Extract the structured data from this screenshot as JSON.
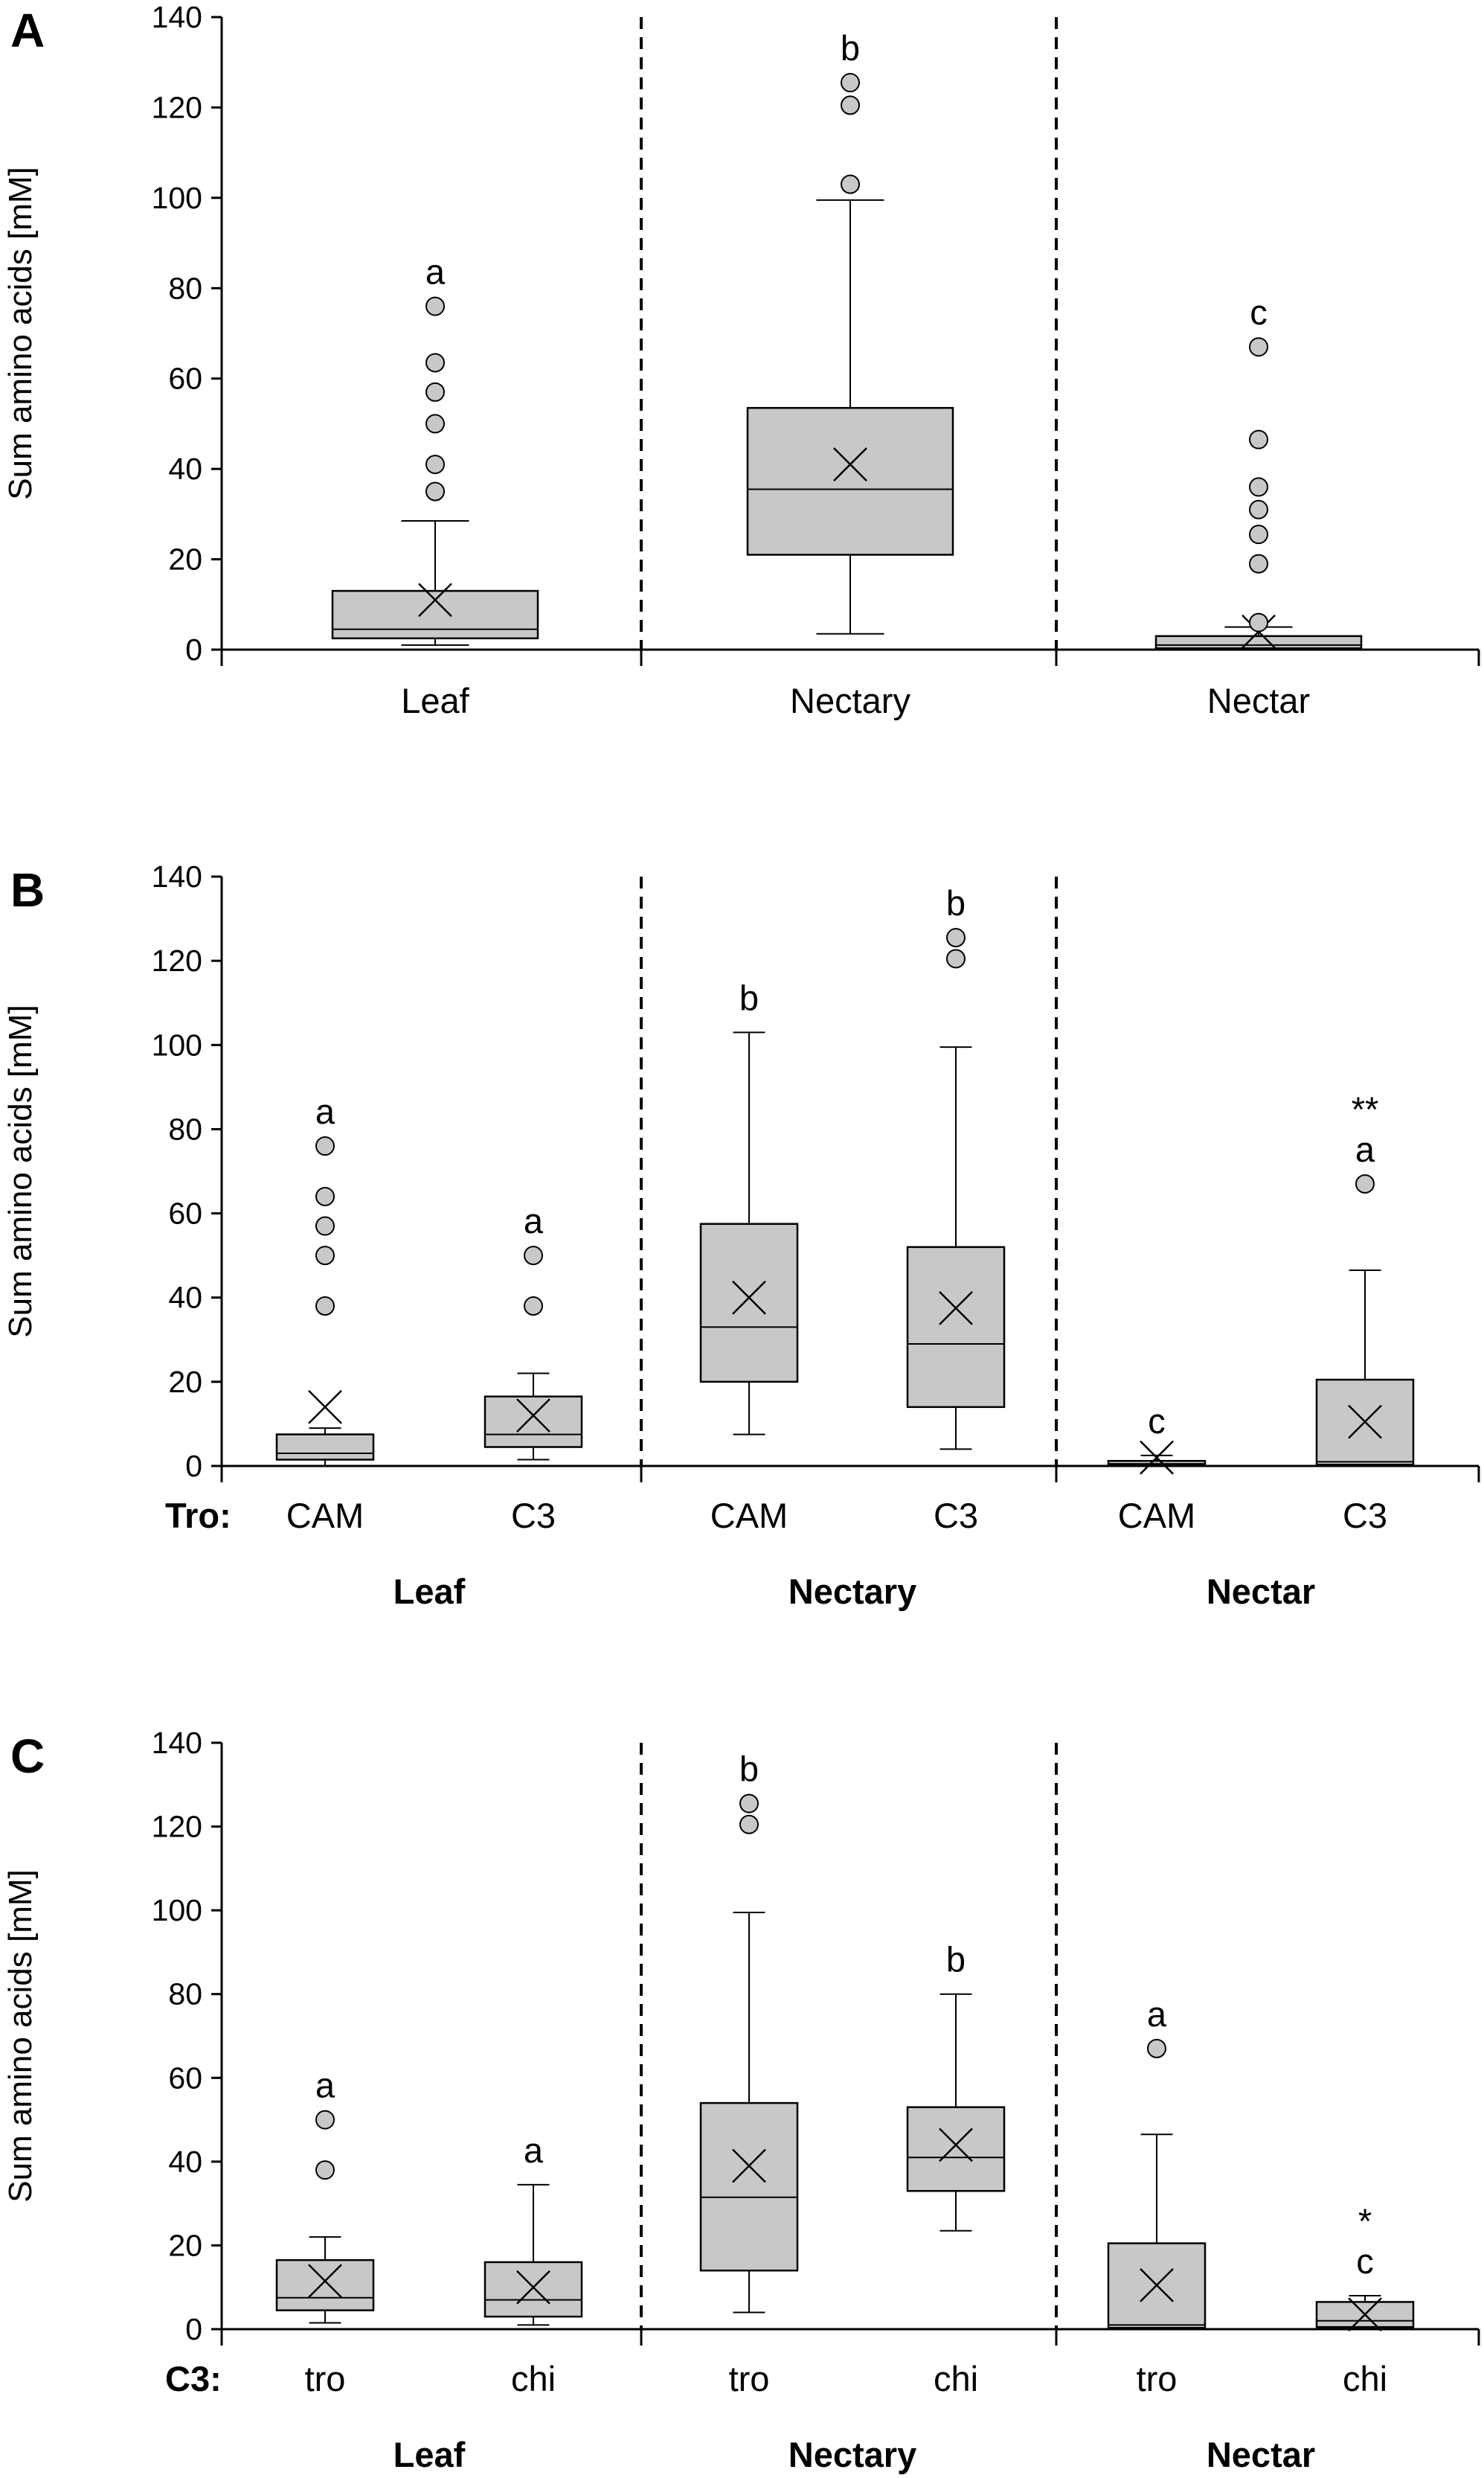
{
  "chart_data": [
    {
      "type": "box",
      "panel_label": "A",
      "ylabel": "Sum amino acids [mM]",
      "ylim": [
        0,
        140
      ],
      "yticks": [
        0,
        20,
        40,
        60,
        80,
        100,
        120,
        140
      ],
      "groups": [],
      "prefix": "",
      "boxes": [
        {
          "label": "Leaf",
          "min": 1,
          "q1": 2.5,
          "median": 4.5,
          "q3": 13,
          "max": 28.5,
          "mean": 11,
          "outliers": [
            35,
            41,
            50,
            57,
            63.5,
            76
          ],
          "sig": "a"
        },
        {
          "label": "Nectary",
          "min": 3.5,
          "q1": 21,
          "median": 35.5,
          "q3": 53.5,
          "max": 99.5,
          "mean": 41,
          "outliers": [
            103,
            120.5,
            125.5
          ],
          "sig": "b"
        },
        {
          "label": "Nectar",
          "min": 0,
          "q1": 0.3,
          "median": 1,
          "q3": 3,
          "max": 5,
          "mean": 4,
          "outliers": [
            6,
            19,
            25.5,
            31,
            36,
            46.5,
            67
          ],
          "sig": "c"
        }
      ]
    },
    {
      "type": "box",
      "panel_label": "B",
      "ylabel": "Sum amino acids [mM]",
      "ylim": [
        0,
        140
      ],
      "yticks": [
        0,
        20,
        40,
        60,
        80,
        100,
        120,
        140
      ],
      "groups": [
        "Leaf",
        "Nectary",
        "Nectar"
      ],
      "prefix": "Tro:",
      "boxes": [
        {
          "label": "CAM",
          "min": 0,
          "q1": 1.5,
          "median": 3,
          "q3": 7.5,
          "max": 9,
          "mean": 14,
          "outliers": [
            38,
            50,
            57,
            64,
            76
          ],
          "sig": "a"
        },
        {
          "label": "C3",
          "min": 1.5,
          "q1": 4.5,
          "median": 7.5,
          "q3": 16.5,
          "max": 22,
          "mean": 12,
          "outliers": [
            38,
            50
          ],
          "sig": "a"
        },
        {
          "label": "CAM",
          "min": 7.5,
          "q1": 20,
          "median": 33,
          "q3": 57.5,
          "max": 103,
          "mean": 40,
          "outliers": [],
          "sig": "b"
        },
        {
          "label": "C3",
          "min": 4,
          "q1": 14,
          "median": 29,
          "q3": 52,
          "max": 99.5,
          "mean": 37.5,
          "outliers": [
            120.5,
            125.5
          ],
          "sig": "b"
        },
        {
          "label": "CAM",
          "min": 0,
          "q1": 0.2,
          "median": 0.5,
          "q3": 1.2,
          "max": 2.5,
          "mean": 2,
          "outliers": [],
          "sig": "c"
        },
        {
          "label": "C3",
          "min": 0,
          "q1": 0.3,
          "median": 1,
          "q3": 20.5,
          "max": 46.5,
          "mean": 10.5,
          "outliers": [
            67
          ],
          "sig": "**\na"
        }
      ]
    },
    {
      "type": "box",
      "panel_label": "C",
      "ylabel": "Sum amino acids [mM]",
      "ylim": [
        0,
        140
      ],
      "yticks": [
        0,
        20,
        40,
        60,
        80,
        100,
        120,
        140
      ],
      "groups": [
        "Leaf",
        "Nectary",
        "Nectar"
      ],
      "prefix": "C3:",
      "boxes": [
        {
          "label": "tro",
          "min": 1.5,
          "q1": 4.5,
          "median": 7.5,
          "q3": 16.5,
          "max": 22,
          "mean": 11.5,
          "outliers": [
            38,
            50
          ],
          "sig": "a"
        },
        {
          "label": "chi",
          "min": 1,
          "q1": 3,
          "median": 7,
          "q3": 16,
          "max": 34.5,
          "mean": 10,
          "outliers": [],
          "sig": "a"
        },
        {
          "label": "tro",
          "min": 4,
          "q1": 14,
          "median": 31.5,
          "q3": 54,
          "max": 99.5,
          "mean": 39,
          "outliers": [
            120.5,
            125.5
          ],
          "sig": "b"
        },
        {
          "label": "chi",
          "min": 23.5,
          "q1": 33,
          "median": 41,
          "q3": 53,
          "max": 80,
          "mean": 44,
          "outliers": [],
          "sig": "b"
        },
        {
          "label": "tro",
          "min": 0,
          "q1": 0.3,
          "median": 1,
          "q3": 20.5,
          "max": 46.5,
          "mean": 10.5,
          "outliers": [
            67
          ],
          "sig": "a"
        },
        {
          "label": "chi",
          "min": 0,
          "q1": 0.5,
          "median": 2,
          "q3": 6.5,
          "max": 8,
          "mean": 3.5,
          "outliers": [],
          "sig": "*\nc"
        }
      ]
    }
  ]
}
